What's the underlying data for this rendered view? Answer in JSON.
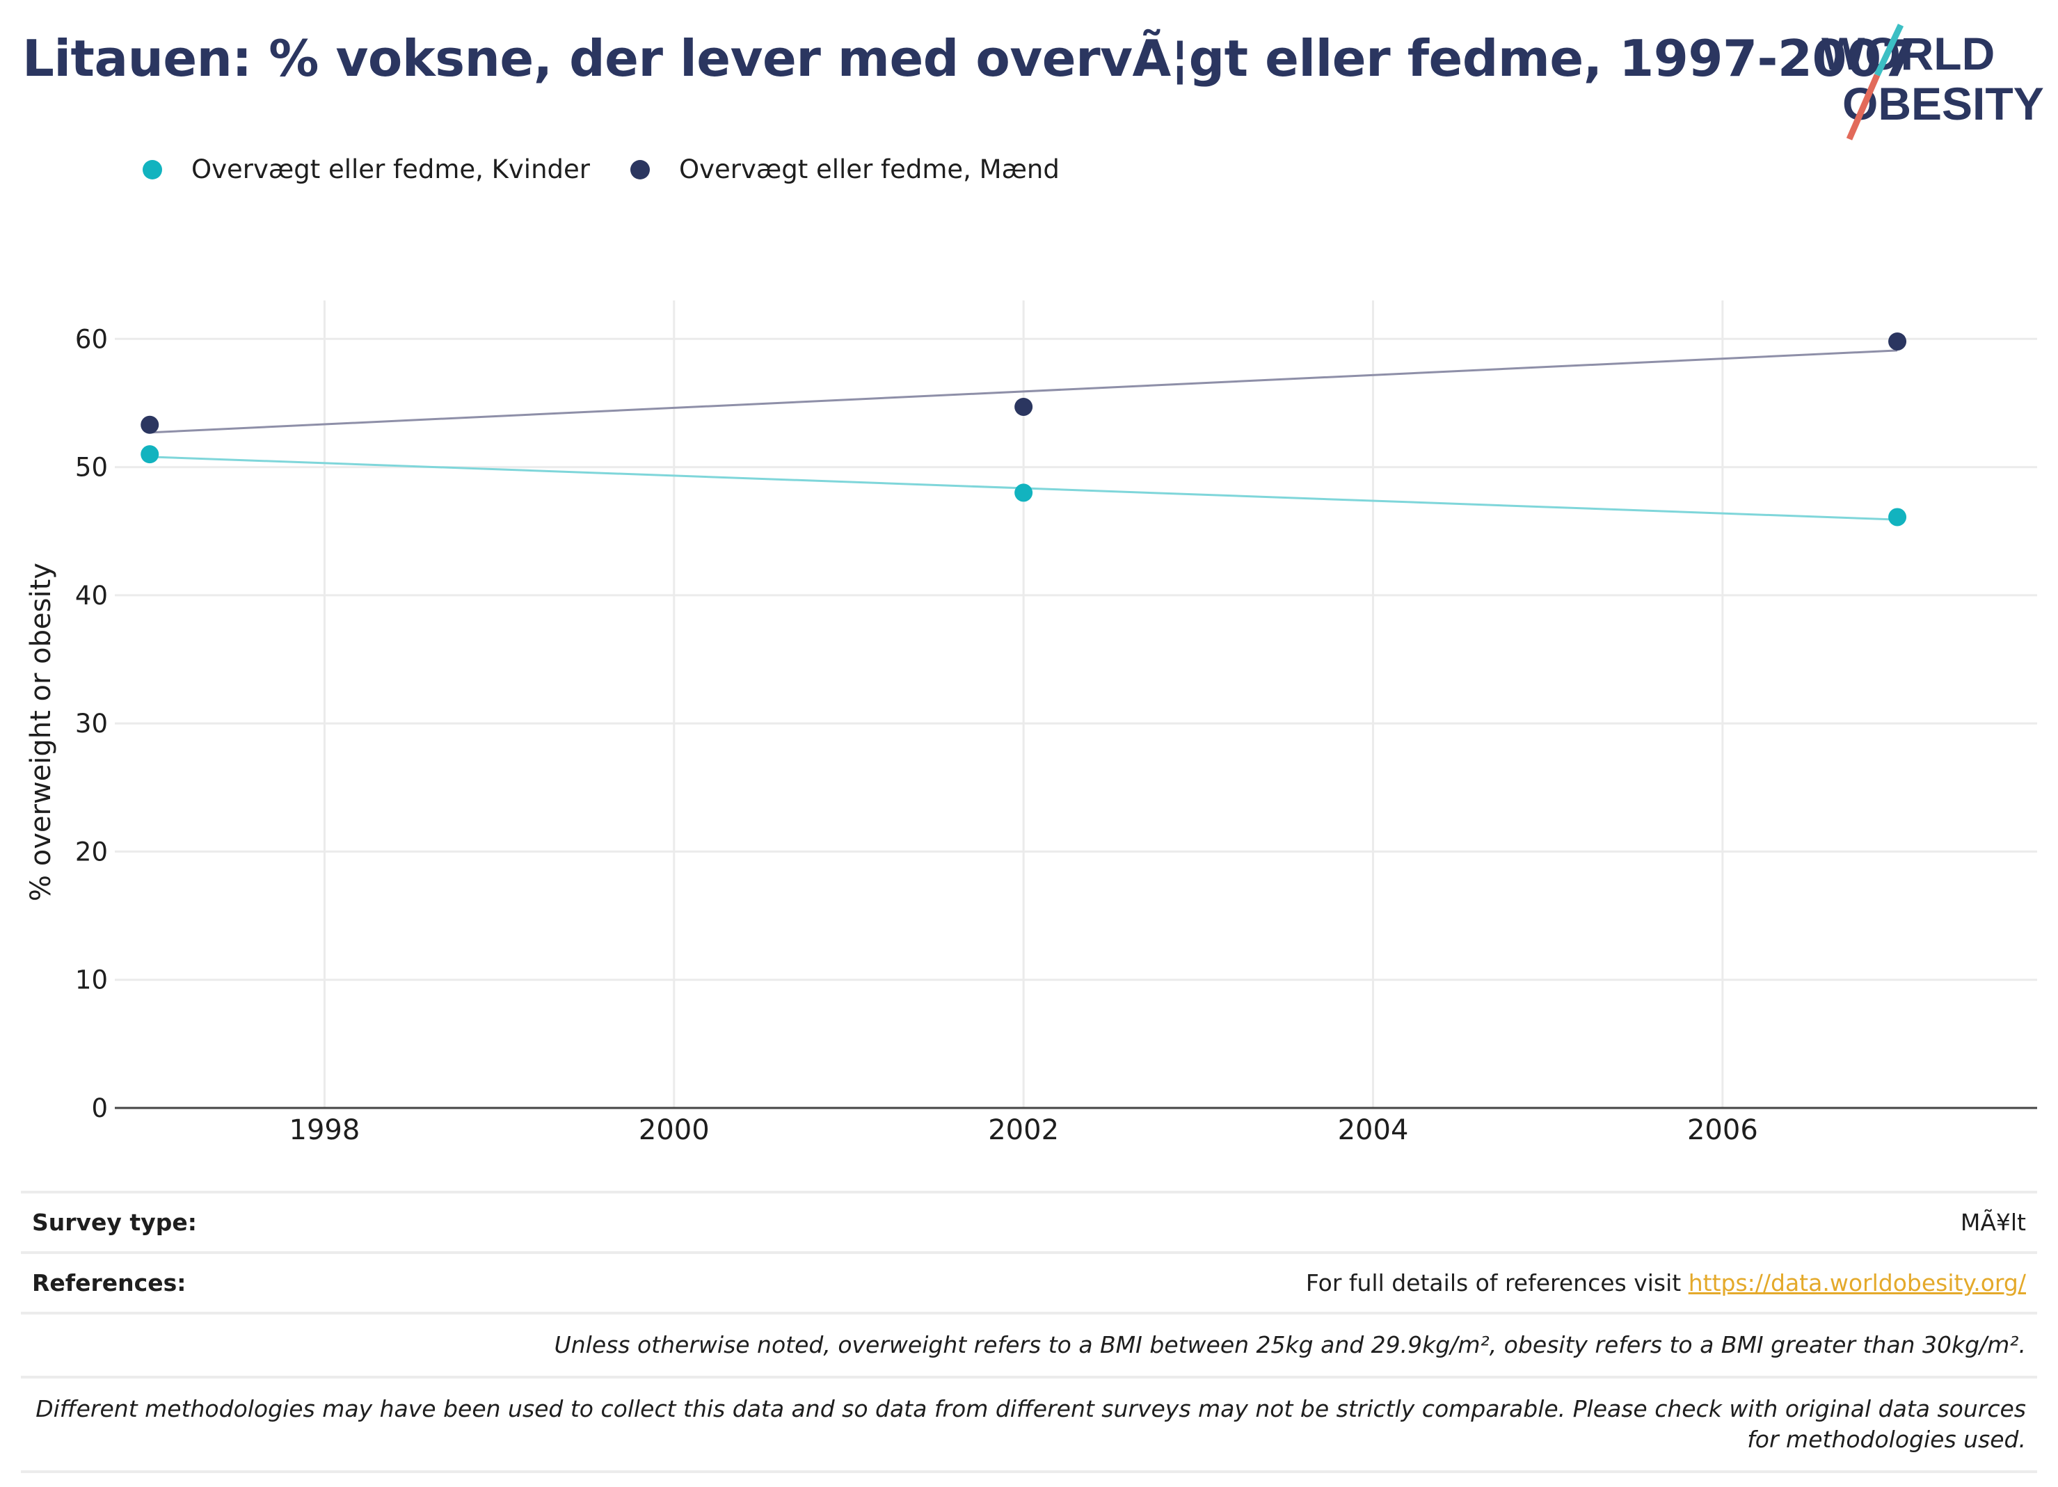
{
  "header": {
    "title": "Litauen: % voksne, der lever med overvÃ¦gt eller fedme, 1997-2007"
  },
  "logo": {
    "line1": "WORLD",
    "line2": "OBESITY"
  },
  "legend": [
    {
      "label": "Overvægt eller fedme, Kvinder",
      "color": "#12b3bf"
    },
    {
      "label": "Overvægt eller fedme, Mænd",
      "color": "#2b3660"
    }
  ],
  "chart_data": {
    "type": "scatter",
    "title": "Litauen: % voksne, der lever med overvÃ¦gt eller fedme, 1997-2007",
    "xlabel": "",
    "ylabel": "% overweight or obesity",
    "xlim": [
      1996.8,
      2007.8
    ],
    "ylim": [
      0,
      63
    ],
    "xticks": [
      1998,
      2000,
      2002,
      2004,
      2006
    ],
    "yticks": [
      0,
      10,
      20,
      30,
      40,
      50,
      60
    ],
    "grid": true,
    "legend_position": "top-left",
    "trendlines": true,
    "series": [
      {
        "name": "Overvægt eller fedme, Kvinder",
        "color": "#12b3bf",
        "trend_color": "#7fd6da",
        "x": [
          1997,
          2002,
          2007
        ],
        "y": [
          51.0,
          48.0,
          46.1
        ],
        "trend": {
          "x": [
            1997,
            2007
          ],
          "y": [
            50.8,
            45.9
          ]
        }
      },
      {
        "name": "Overvægt eller fedme, Mænd",
        "color": "#2b3660",
        "trend_color": "#8e8fa8",
        "x": [
          1997,
          2002,
          2007
        ],
        "y": [
          53.3,
          54.7,
          59.8
        ],
        "trend": {
          "x": [
            1997,
            2007
          ],
          "y": [
            52.7,
            59.1
          ]
        }
      }
    ]
  },
  "footer": {
    "survey_type_label": "Survey type:",
    "survey_type_value": "MÃ¥lt",
    "references_label": "References:",
    "references_text": "For full details of references visit ",
    "references_link": "https://data.worldobesity.org/",
    "note1": "Unless otherwise noted, overweight refers to a BMI between 25kg and 29.9kg/m², obesity refers to a BMI greater than 30kg/m².",
    "note2": "Different methodologies may have been used to collect this data and so data from different surveys may not be strictly comparable. Please check with original data sources for methodologies used."
  }
}
